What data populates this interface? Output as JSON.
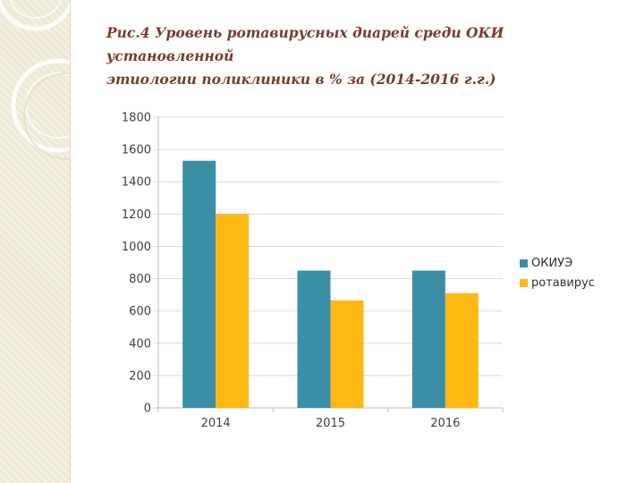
{
  "slide": {
    "title_line1": "Рис.4 Уровень ротавирусных диарей среди ОКИ установленной",
    "title_line2": "этиологии    поликлиники в %  за (2014-2016 г.г.)"
  },
  "colors": {
    "side_panel": "#eee9d6",
    "title": "#7a3b2e",
    "series_okiue": "#3a8fa7",
    "series_rotavirus": "#fdb813",
    "gridline": "#d9d9d9"
  },
  "chart_data": {
    "type": "bar",
    "categories": [
      "2014",
      "2015",
      "2016"
    ],
    "series": [
      {
        "name": "ОКИУЭ",
        "values": [
          1530,
          850,
          850
        ]
      },
      {
        "name": "ротавирус",
        "values": [
          1200,
          665,
          710
        ]
      }
    ],
    "ylim": [
      0,
      1800
    ],
    "yticks": [
      0,
      200,
      400,
      600,
      800,
      1000,
      1200,
      1400,
      1600,
      1800
    ],
    "grid": true,
    "legend_position": "right"
  }
}
